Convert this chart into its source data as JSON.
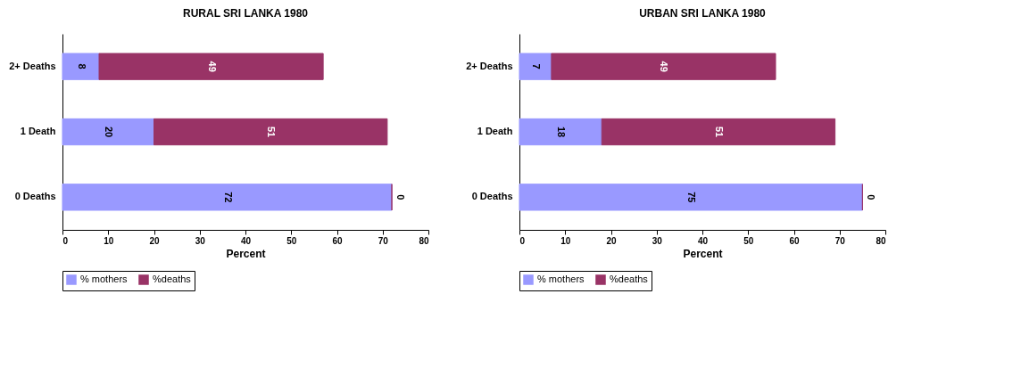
{
  "chart_data": [
    {
      "type": "bar",
      "orientation": "horizontal",
      "stacked": true,
      "title": "RURAL SRI LANKA 1980",
      "xlabel": "Percent",
      "categories": [
        "2+ Deaths",
        "1 Death",
        "0 Deaths"
      ],
      "series": [
        {
          "name": "% mothers",
          "color": "#9999ff",
          "values": [
            8,
            20,
            72
          ]
        },
        {
          "name": "%deaths",
          "color": "#993366",
          "values": [
            49,
            51,
            0
          ]
        }
      ],
      "xlim": [
        0,
        80
      ],
      "xticks": [
        0,
        10,
        20,
        30,
        40,
        50,
        60,
        70,
        80
      ],
      "data_labels": true,
      "legend": "bottom"
    },
    {
      "type": "bar",
      "orientation": "horizontal",
      "stacked": true,
      "title": "URBAN SRI LANKA 1980",
      "xlabel": "Percent",
      "categories": [
        "2+ Deaths",
        "1 Death",
        "0 Deaths"
      ],
      "series": [
        {
          "name": "% mothers",
          "color": "#9999ff",
          "values": [
            7,
            18,
            75
          ]
        },
        {
          "name": "%deaths",
          "color": "#993366",
          "values": [
            49,
            51,
            0
          ]
        }
      ],
      "xlim": [
        0,
        80
      ],
      "xticks": [
        0,
        10,
        20,
        30,
        40,
        50,
        60,
        70,
        80
      ],
      "data_labels": true,
      "legend": "bottom"
    }
  ]
}
